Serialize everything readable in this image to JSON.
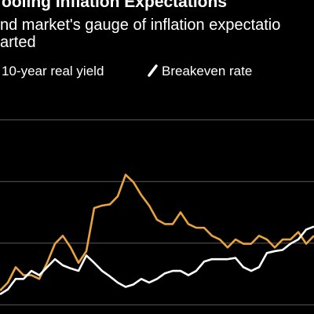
{
  "chart_data": {
    "type": "line",
    "title": "ooling Inflation Expectations",
    "subtitle": [
      "nd market's gauge of inflation expectatio",
      "arted"
    ],
    "x": [
      0,
      1,
      2,
      3,
      4,
      5,
      6,
      7,
      8,
      9,
      10,
      11,
      12,
      13,
      14,
      15,
      16,
      17,
      18,
      19,
      20,
      21,
      22,
      23,
      24,
      25,
      26,
      27,
      28,
      29,
      30,
      31,
      32,
      33,
      34,
      35,
      36,
      37,
      38,
      39,
      40
    ],
    "xlim": [
      0,
      40
    ],
    "ylim": [
      -0.15,
      3.15
    ],
    "yticks": [
      0,
      1,
      2,
      3
    ],
    "grid": true,
    "series": [
      {
        "name": "10-year real yield",
        "color": "#e8a33d",
        "values": [
          0.23,
          0.36,
          0.61,
          0.48,
          0.48,
          0.42,
          0.68,
          0.99,
          1.12,
          0.93,
          0.68,
          0.87,
          1.57,
          1.61,
          1.63,
          1.76,
          2.11,
          1.99,
          1.78,
          1.61,
          1.38,
          1.31,
          1.31,
          1.5,
          1.31,
          1.25,
          1.25,
          1.12,
          1.06,
          0.93,
          1.06,
          0.99,
          0.99,
          1.12,
          1.06,
          0.93,
          1.06,
          1.06,
          1.18,
          0.99,
          1.12
        ]
      },
      {
        "name": "Breakeven rate",
        "color": "#ffffff",
        "values": [
          0.17,
          0.25,
          0.42,
          0.42,
          0.55,
          0.48,
          0.61,
          0.74,
          0.64,
          0.59,
          0.55,
          0.8,
          0.68,
          0.55,
          0.46,
          0.36,
          0.29,
          0.33,
          0.42,
          0.36,
          0.42,
          0.51,
          0.55,
          0.55,
          0.48,
          0.55,
          0.7,
          0.74,
          0.74,
          0.74,
          0.76,
          0.61,
          0.55,
          0.61,
          0.84,
          0.87,
          0.89,
          0.99,
          1.06,
          1.22,
          1.27
        ]
      }
    ]
  }
}
